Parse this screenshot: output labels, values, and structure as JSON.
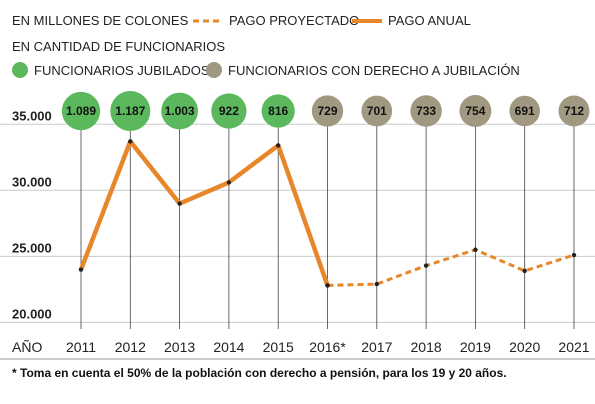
{
  "legend": {
    "units": "EN MILLONES DE COLONES",
    "projected": "PAGO PROYECTADO",
    "annual": "PAGO ANUAL",
    "count_units": "EN CANTIDAD DE FUNCIONARIOS",
    "retired": "FUNCIONARIOS JUBILADOS",
    "eligible": "FUNCIONARIOS CON DERECHO A JUBILACIÓN"
  },
  "footnote": "* Toma en cuenta el 50% de la población con derecho a pensión, para los 19 y 20 años.",
  "colors": {
    "line": "#e8862a",
    "retired": "#5cb85c",
    "eligible": "#a09880",
    "grid": "#cccccc",
    "stem": "#444444",
    "point": "#222222"
  },
  "chart_data": {
    "type": "line",
    "x_header": "AÑO",
    "categories": [
      "2011",
      "2012",
      "2013",
      "2014",
      "2015",
      "2016*",
      "2017",
      "2018",
      "2019",
      "2020",
      "2021"
    ],
    "y_ticks": [
      "35.000",
      "30.000",
      "25.000",
      "20.000"
    ],
    "y_tick_values": [
      35000,
      30000,
      25000,
      20000
    ],
    "ylim": [
      19500,
      38200
    ],
    "series": [
      {
        "name": "PAGO ANUAL",
        "style": "solid",
        "values": [
          24000,
          33700,
          29000,
          30600,
          33400,
          22800,
          null,
          null,
          null,
          null,
          null
        ]
      },
      {
        "name": "PAGO PROYECTADO",
        "style": "dashed",
        "values": [
          null,
          null,
          null,
          null,
          null,
          22800,
          22900,
          24300,
          25500,
          23900,
          25100
        ]
      }
    ],
    "employees": {
      "values": [
        1089,
        1187,
        1003,
        922,
        816,
        729,
        701,
        733,
        754,
        691,
        712
      ],
      "labels": [
        "1.089",
        "1.187",
        "1.003",
        "922",
        "816",
        "729",
        "701",
        "733",
        "754",
        "691",
        "712"
      ],
      "type": [
        "retired",
        "retired",
        "retired",
        "retired",
        "retired",
        "eligible",
        "eligible",
        "eligible",
        "eligible",
        "eligible",
        "eligible"
      ]
    }
  }
}
